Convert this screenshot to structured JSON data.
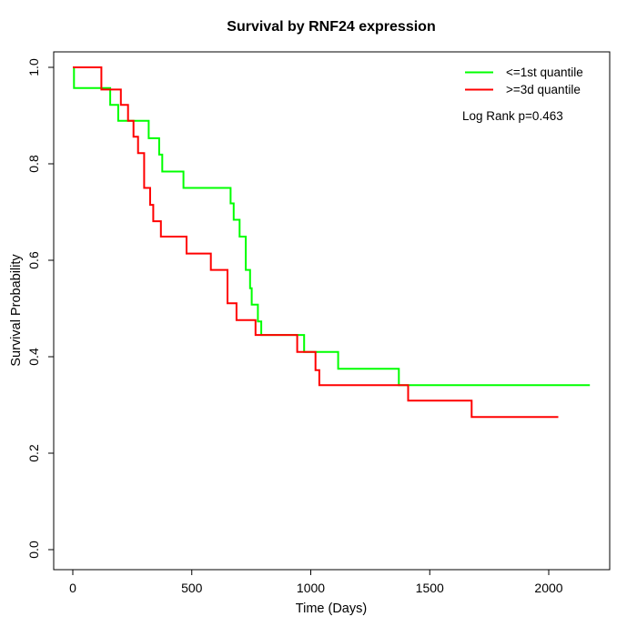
{
  "chart_data": {
    "type": "line",
    "subtype": "kaplan-meier-step-curves",
    "title": "Survival by RNF24 expression",
    "xlabel": "Time (Days)",
    "ylabel": "Survival Probability",
    "x_ticks": [
      0,
      500,
      1000,
      1500,
      2000
    ],
    "y_ticks": [
      "0.0",
      "0.2",
      "0.4",
      "0.6",
      "0.8",
      "1.0"
    ],
    "xlim": [
      0,
      2250
    ],
    "ylim": [
      0.0,
      1.0
    ],
    "grid": false,
    "legend_position": "top-right",
    "annotation": "Log Rank p=0.463",
    "axis_color": "#000000",
    "series": [
      {
        "name": "<=1st quantile",
        "color": "#00ff00",
        "points": [
          [
            0,
            1.0
          ],
          [
            5,
            0.957
          ],
          [
            157,
            0.922
          ],
          [
            191,
            0.889
          ],
          [
            319,
            0.853
          ],
          [
            363,
            0.819
          ],
          [
            376,
            0.784
          ],
          [
            465,
            0.75
          ],
          [
            663,
            0.718
          ],
          [
            676,
            0.684
          ],
          [
            701,
            0.649
          ],
          [
            727,
            0.58
          ],
          [
            745,
            0.542
          ],
          [
            752,
            0.508
          ],
          [
            778,
            0.473
          ],
          [
            792,
            0.445
          ],
          [
            972,
            0.41
          ],
          [
            1115,
            0.375
          ],
          [
            1370,
            0.341
          ],
          [
            2173,
            0.341
          ]
        ]
      },
      {
        "name": ">=3d quantile",
        "color": "#ff0000",
        "points": [
          [
            0,
            1.0
          ],
          [
            120,
            0.954
          ],
          [
            202,
            0.922
          ],
          [
            232,
            0.889
          ],
          [
            255,
            0.856
          ],
          [
            274,
            0.822
          ],
          [
            300,
            0.75
          ],
          [
            325,
            0.715
          ],
          [
            338,
            0.681
          ],
          [
            370,
            0.649
          ],
          [
            478,
            0.614
          ],
          [
            580,
            0.58
          ],
          [
            650,
            0.511
          ],
          [
            688,
            0.476
          ],
          [
            768,
            0.445
          ],
          [
            943,
            0.41
          ],
          [
            1020,
            0.372
          ],
          [
            1036,
            0.341
          ],
          [
            1409,
            0.309
          ],
          [
            1676,
            0.275
          ],
          [
            2040,
            0.275
          ]
        ]
      }
    ]
  }
}
